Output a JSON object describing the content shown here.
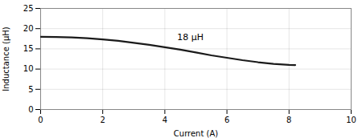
{
  "chart_data": {
    "type": "line",
    "xlabel": "Current (A)",
    "ylabel": "Inductance (μH)",
    "x": [
      0.0,
      0.5,
      1.0,
      1.5,
      2.0,
      2.5,
      3.0,
      3.5,
      4.0,
      4.5,
      5.0,
      5.5,
      6.0,
      6.5,
      7.0,
      7.5,
      8.0,
      8.2
    ],
    "values": [
      18.0,
      17.95,
      17.85,
      17.65,
      17.35,
      17.0,
      16.5,
      16.0,
      15.4,
      14.8,
      14.1,
      13.4,
      12.8,
      12.2,
      11.7,
      11.3,
      11.05,
      11.0
    ],
    "color": "#1a1a1a",
    "annotations": [
      {
        "text": "18 μH",
        "x": 4.4,
        "y": 17.8
      }
    ],
    "xlim": [
      0,
      10
    ],
    "ylim": [
      0,
      25
    ],
    "xticks": [
      0,
      2,
      4,
      6,
      8,
      10
    ],
    "yticks": [
      0,
      5,
      10,
      15,
      20,
      25
    ],
    "grid": true
  }
}
